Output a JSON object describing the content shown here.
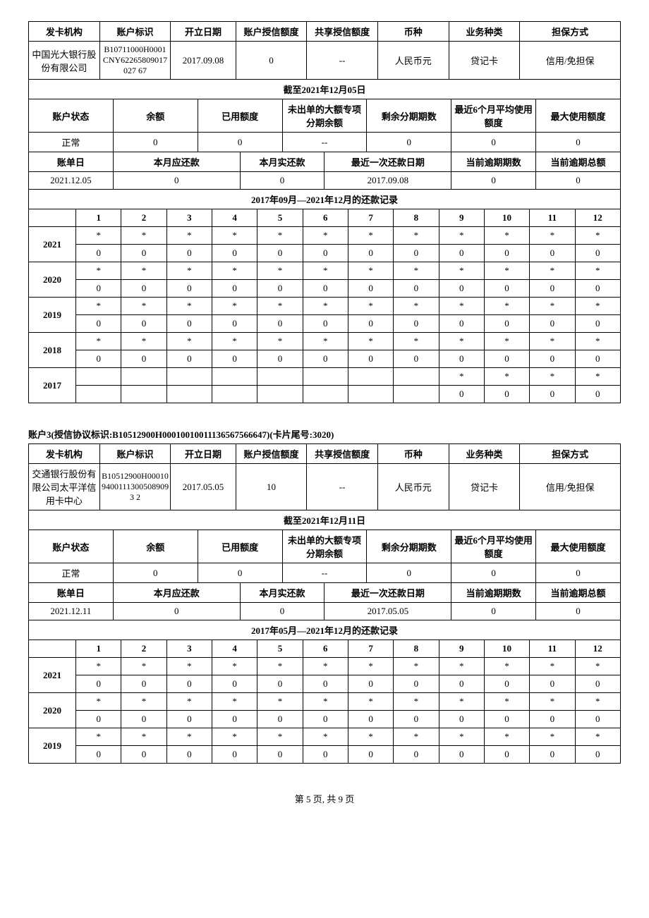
{
  "account2": {
    "headers": [
      "发卡机构",
      "账户标识",
      "开立日期",
      "账户授信额度",
      "共享授信额度",
      "币种",
      "业务种类",
      "担保方式"
    ],
    "values": [
      "中国光大银行股份有限公司",
      "B10711000H0001CNY62265809017027 67",
      "2017.09.08",
      "0",
      "--",
      "人民币元",
      "贷记卡",
      "信用/免担保"
    ],
    "asof": "截至2021年12月05日",
    "status_headers": [
      "账户状态",
      "余额",
      "已用额度",
      "未出单的大额专项分期余额",
      "剩余分期期数",
      "最近6个月平均使用额度",
      "最大使用额度"
    ],
    "status_values": [
      "正常",
      "0",
      "0",
      "--",
      "0",
      "0",
      "0"
    ],
    "bill_headers": [
      "账单日",
      "本月应还款",
      "本月实还款",
      "最近一次还款日期",
      "当前逾期期数",
      "当前逾期总额"
    ],
    "bill_values": [
      "2021.12.05",
      "0",
      "0",
      "2017.09.08",
      "0",
      "0"
    ],
    "history_title": "2017年09月—2021年12月的还款记录",
    "months": [
      "1",
      "2",
      "3",
      "4",
      "5",
      "6",
      "7",
      "8",
      "9",
      "10",
      "11",
      "12"
    ],
    "history": [
      {
        "year": "2021",
        "r1": [
          "*",
          "*",
          "*",
          "*",
          "*",
          "*",
          "*",
          "*",
          "*",
          "*",
          "*",
          "*"
        ],
        "r2": [
          "0",
          "0",
          "0",
          "0",
          "0",
          "0",
          "0",
          "0",
          "0",
          "0",
          "0",
          "0"
        ]
      },
      {
        "year": "2020",
        "r1": [
          "*",
          "*",
          "*",
          "*",
          "*",
          "*",
          "*",
          "*",
          "*",
          "*",
          "*",
          "*"
        ],
        "r2": [
          "0",
          "0",
          "0",
          "0",
          "0",
          "0",
          "0",
          "0",
          "0",
          "0",
          "0",
          "0"
        ]
      },
      {
        "year": "2019",
        "r1": [
          "*",
          "*",
          "*",
          "*",
          "*",
          "*",
          "*",
          "*",
          "*",
          "*",
          "*",
          "*"
        ],
        "r2": [
          "0",
          "0",
          "0",
          "0",
          "0",
          "0",
          "0",
          "0",
          "0",
          "0",
          "0",
          "0"
        ]
      },
      {
        "year": "2018",
        "r1": [
          "*",
          "*",
          "*",
          "*",
          "*",
          "*",
          "*",
          "*",
          "*",
          "*",
          "*",
          "*"
        ],
        "r2": [
          "0",
          "0",
          "0",
          "0",
          "0",
          "0",
          "0",
          "0",
          "0",
          "0",
          "0",
          "0"
        ]
      },
      {
        "year": "2017",
        "r1": [
          "",
          "",
          "",
          "",
          "",
          "",
          "",
          "",
          "*",
          "*",
          "*",
          "*"
        ],
        "r2": [
          "",
          "",
          "",
          "",
          "",
          "",
          "",
          "",
          "0",
          "0",
          "0",
          "0"
        ]
      }
    ]
  },
  "account3": {
    "title": "账户3(授信协议标识:B10512900H0001001001113656756​6647)(卡片尾号:3020)",
    "headers": [
      "发卡机构",
      "账户标识",
      "开立日期",
      "账户授信额度",
      "共享授信额度",
      "币种",
      "业务种类",
      "担保方式"
    ],
    "values": [
      "交通银行股份有限公司太平洋信用卡中心",
      "B10512900H0001094001113005089093 2",
      "2017.05.05",
      "10",
      "--",
      "人民币元",
      "贷记卡",
      "信用/免担保"
    ],
    "asof": "截至2021年12月11日",
    "status_headers": [
      "账户状态",
      "余额",
      "已用额度",
      "未出单的大额专项分期余额",
      "剩余分期期数",
      "最近6个月平均使用额度",
      "最大使用额度"
    ],
    "status_values": [
      "正常",
      "0",
      "0",
      "--",
      "0",
      "0",
      "0"
    ],
    "bill_headers": [
      "账单日",
      "本月应还款",
      "本月实还款",
      "最近一次还款日期",
      "当前逾期期数",
      "当前逾期总额"
    ],
    "bill_values": [
      "2021.12.11",
      "0",
      "0",
      "2017.05.05",
      "0",
      "0"
    ],
    "history_title": "2017年05月—2021年12月的还款记录",
    "months": [
      "1",
      "2",
      "3",
      "4",
      "5",
      "6",
      "7",
      "8",
      "9",
      "10",
      "11",
      "12"
    ],
    "history": [
      {
        "year": "2021",
        "r1": [
          "*",
          "*",
          "*",
          "*",
          "*",
          "*",
          "*",
          "*",
          "*",
          "*",
          "*",
          "*"
        ],
        "r2": [
          "0",
          "0",
          "0",
          "0",
          "0",
          "0",
          "0",
          "0",
          "0",
          "0",
          "0",
          "0"
        ]
      },
      {
        "year": "2020",
        "r1": [
          "*",
          "*",
          "*",
          "*",
          "*",
          "*",
          "*",
          "*",
          "*",
          "*",
          "*",
          "*"
        ],
        "r2": [
          "0",
          "0",
          "0",
          "0",
          "0",
          "0",
          "0",
          "0",
          "0",
          "0",
          "0",
          "0"
        ]
      },
      {
        "year": "2019",
        "r1": [
          "*",
          "*",
          "*",
          "*",
          "*",
          "*",
          "*",
          "*",
          "*",
          "*",
          "*",
          "*"
        ],
        "r2": [
          "0",
          "0",
          "0",
          "0",
          "0",
          "0",
          "0",
          "0",
          "0",
          "0",
          "0",
          "0"
        ]
      }
    ]
  },
  "footer": "第 5 页, 共 9 页"
}
